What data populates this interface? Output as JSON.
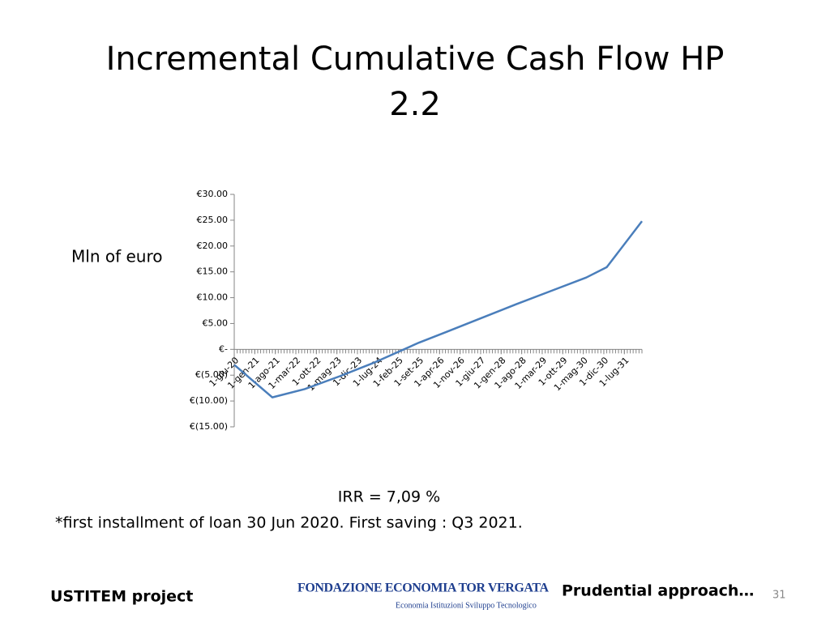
{
  "chart_data": {
    "type": "line",
    "title": "Incremental Cumulative Cash Flow HP 2.2",
    "y_label": "Mln of euro",
    "annotations": [
      "IRR = 7,09 %",
      "*first installment of loan 30 Jun 2020. First saving : Q3 2021."
    ],
    "x": [
      "1-giu-20",
      "1-lug-21",
      "1-giu-22",
      "1-giu-23",
      "1-giu-24",
      "1-set-25",
      "1-giu-26",
      "1-giu-27",
      "1-giu-28",
      "1-giu-29",
      "1-giu-30",
      "1-gen-31",
      "1-gen-32"
    ],
    "series": [
      {
        "color": "#4a7ebb",
        "values": [
          -3.0,
          -9.3,
          -7.7,
          -5.2,
          -2.5,
          1.3,
          3.3,
          6.0,
          8.7,
          11.3,
          13.9,
          15.9,
          24.8
        ]
      }
    ],
    "xlim": [
      "1-giu-20",
      "1-gen-32"
    ],
    "xticks": [
      "1-giu-20",
      "1-gen-21",
      "1-ago-21",
      "1-mar-22",
      "1-ott-22",
      "1-mag-23",
      "1-dic-23",
      "1-lug-24",
      "1-feb-25",
      "1-set-25",
      "1-apr-26",
      "1-nov-26",
      "1-giu-27",
      "1-gen-28",
      "1-ago-28",
      "1-mar-29",
      "1-ott-29",
      "1-mag-30",
      "1-dic-30",
      "1-lug-31"
    ],
    "ylim": [
      -15,
      30
    ],
    "yticks": [
      {
        "value": -15,
        "label": "€(15.00)"
      },
      {
        "value": -10,
        "label": "€(10.00)"
      },
      {
        "value": -5,
        "label": "€(5.00)"
      },
      {
        "value": 0,
        "label": "€-"
      },
      {
        "value": 5,
        "label": "€5.00"
      },
      {
        "value": 10,
        "label": "€10.00"
      },
      {
        "value": 15,
        "label": "€15.00"
      },
      {
        "value": 20,
        "label": "€20.00"
      },
      {
        "value": 25,
        "label": "€25.00"
      },
      {
        "value": 30,
        "label": "€30.00"
      }
    ],
    "grid": false
  },
  "footer": {
    "left": "USTITEM project",
    "logo_title": "FONDAZIONE ECONOMIA TOR VERGATA",
    "logo_subtitle": "Economia  Istituzioni  Sviluppo Tecnologico",
    "right": "Prudential approach…",
    "page": "31"
  }
}
